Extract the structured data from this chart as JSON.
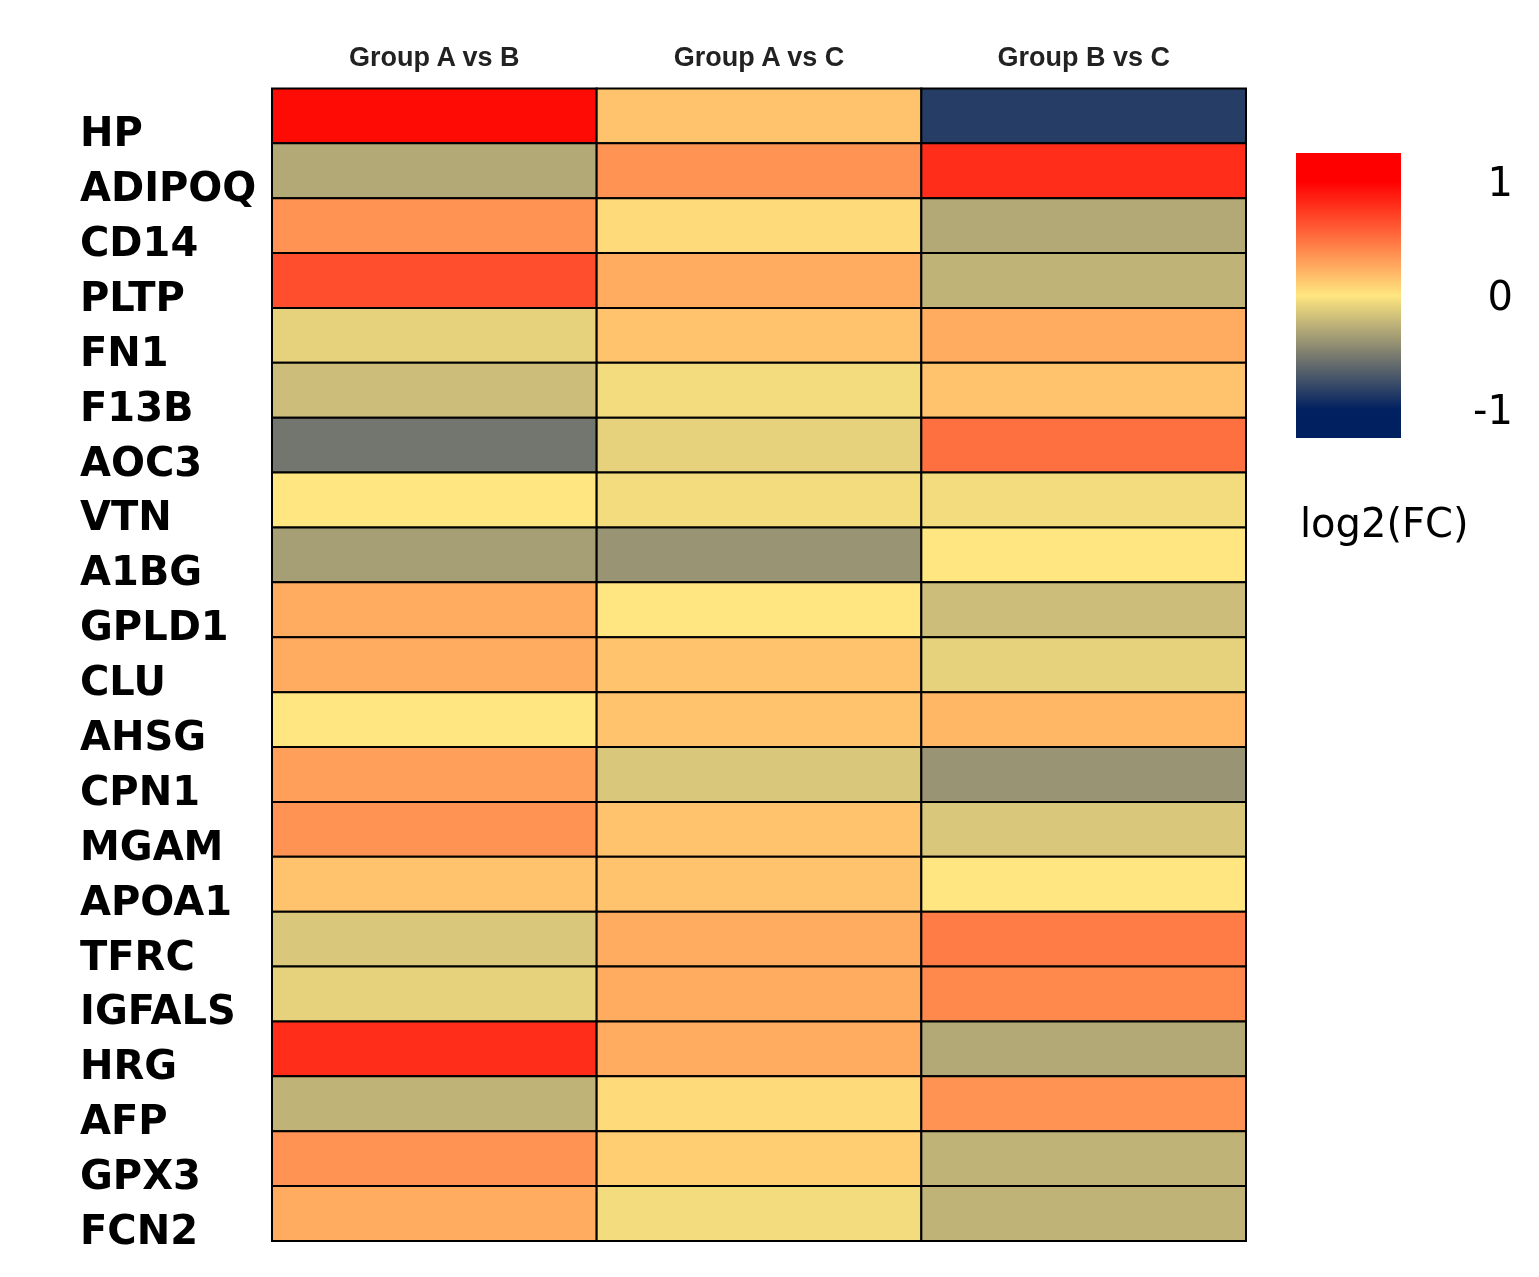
{
  "chart_data": {
    "type": "heatmap",
    "categories": [
      "Group A vs B",
      "Group A vs C",
      "Group B vs C"
    ],
    "y_categories": [
      "HP",
      "ADIPOQ",
      "CD14",
      "PLTP",
      "FN1",
      "F13B",
      "AOC3",
      "VTN",
      "A1BG",
      "GPLD1",
      "CLU",
      "AHSG",
      "CPN1",
      "MGAM",
      "APOA1",
      "TFRC",
      "IGFALS",
      "HRG",
      "AFP",
      "GPX3",
      "FCN2"
    ],
    "cells": [
      [
        0.95,
        0.15,
        -0.85
      ],
      [
        -0.3,
        0.35,
        0.8
      ],
      [
        0.35,
        0.05,
        -0.3
      ],
      [
        0.65,
        0.25,
        -0.25
      ],
      [
        -0.1,
        0.15,
        0.25
      ],
      [
        -0.2,
        -0.05,
        0.15
      ],
      [
        -0.55,
        -0.1,
        0.5
      ],
      [
        0.0,
        -0.05,
        -0.05
      ],
      [
        -0.35,
        -0.4,
        0.0
      ],
      [
        0.25,
        0.0,
        -0.2
      ],
      [
        0.25,
        0.15,
        -0.1
      ],
      [
        0.0,
        0.15,
        0.2
      ],
      [
        0.3,
        -0.15,
        -0.4
      ],
      [
        0.35,
        0.15,
        -0.15
      ],
      [
        0.15,
        0.15,
        0.0
      ],
      [
        -0.15,
        0.25,
        0.45
      ],
      [
        -0.1,
        0.25,
        0.4
      ],
      [
        0.8,
        0.25,
        -0.3
      ],
      [
        -0.25,
        0.05,
        0.35
      ],
      [
        0.35,
        0.1,
        -0.25
      ],
      [
        0.25,
        -0.05,
        -0.25
      ]
    ],
    "clim": [
      -1.25,
      1.25
    ],
    "cticks": [
      1,
      0,
      -1
    ],
    "clabel": "log2(FC)"
  }
}
